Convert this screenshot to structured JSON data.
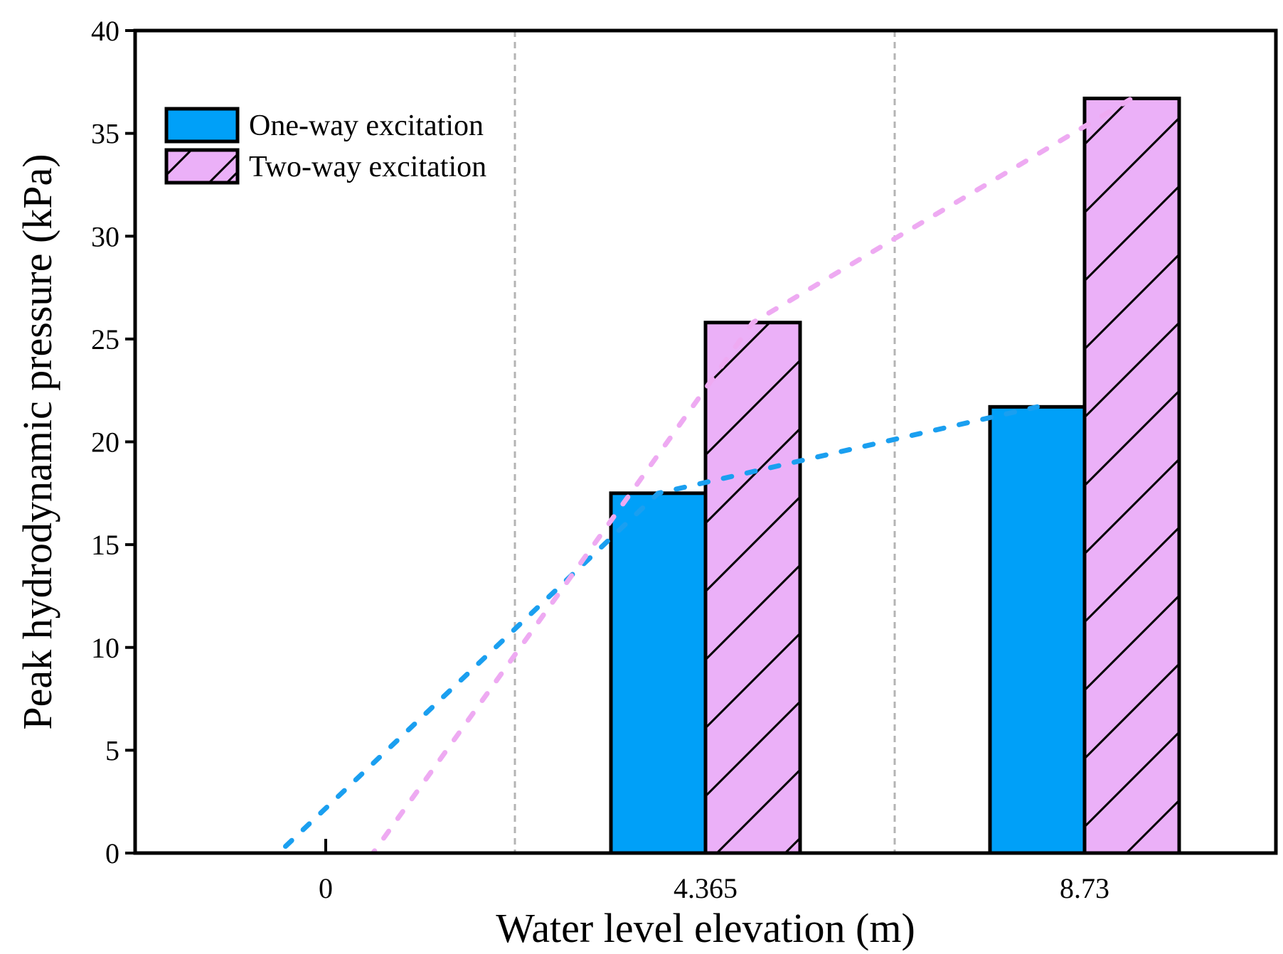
{
  "chart_data": {
    "type": "bar",
    "title": "",
    "xlabel": "Water level elevation (m)",
    "ylabel": "Peak hydrodynamic pressure (kPa)",
    "categories": [
      "0",
      "4.365",
      "8.73"
    ],
    "x": [
      0,
      4.365,
      8.73
    ],
    "ylim": [
      0,
      40
    ],
    "yticks": [
      0,
      5,
      10,
      15,
      20,
      25,
      30,
      35,
      40
    ],
    "grid": "vertical dashed separators between categories",
    "legend_position": "top-left",
    "series": [
      {
        "name": "One-way excitation",
        "values": [
          0,
          17.5,
          21.7
        ],
        "color": "#00a0f8",
        "hatch": "none",
        "trend_color": "#1a9ff0"
      },
      {
        "name": "Two-way excitation",
        "values": [
          0,
          25.8,
          36.7
        ],
        "color": "#ebb0f8",
        "hatch": "diagonal",
        "trend_color": "#eeaaf2"
      }
    ]
  }
}
